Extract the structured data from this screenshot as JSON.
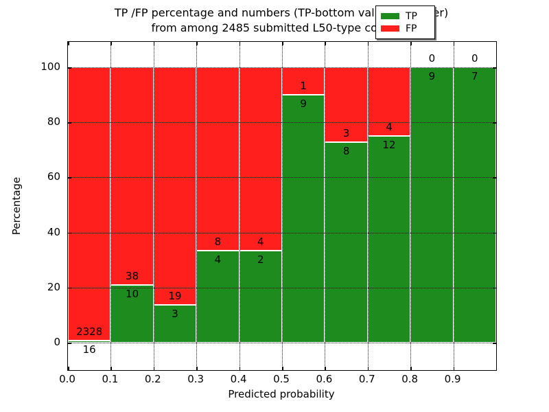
{
  "title": {
    "line1": "TP /FP percentage and numbers (TP-bottom value, FP-upper)",
    "line2": "from among 2485 submitted L50-type contacts"
  },
  "axes": {
    "xlabel": "Predicted probability",
    "ylabel": "Percentage",
    "xticks": [
      "0.0",
      "0.1",
      "0.2",
      "0.3",
      "0.4",
      "0.5",
      "0.6",
      "0.7",
      "0.8",
      "0.9"
    ],
    "yticks": [
      "0",
      "20",
      "40",
      "60",
      "80",
      "100"
    ]
  },
  "legend": {
    "items": [
      {
        "label": "TP",
        "color": "#1e8b1e"
      },
      {
        "label": "FP",
        "color": "#ff1f1c"
      }
    ]
  },
  "colors": {
    "tp": "#1e8b1e",
    "fp": "#ff1f1c",
    "grid": "#1a1a1a"
  },
  "chart_data": {
    "type": "bar",
    "stacked": true,
    "normalized_to_percent": true,
    "title": "TP /FP percentage and numbers (TP-bottom value, FP-upper) from among 2485 submitted L50-type contacts",
    "xlabel": "Predicted probability",
    "ylabel": "Percentage",
    "bins": [
      "0.0-0.1",
      "0.1-0.2",
      "0.2-0.3",
      "0.3-0.4",
      "0.4-0.5",
      "0.5-0.6",
      "0.6-0.7",
      "0.7-0.8",
      "0.8-0.9",
      "0.9-1.0"
    ],
    "bin_edges": [
      0.0,
      0.1,
      0.2,
      0.3,
      0.4,
      0.5,
      0.6,
      0.7,
      0.8,
      0.9,
      1.0
    ],
    "series": [
      {
        "name": "TP",
        "color": "#1e8b1e",
        "counts": [
          16,
          10,
          3,
          4,
          2,
          9,
          8,
          12,
          9,
          7
        ]
      },
      {
        "name": "FP",
        "color": "#ff1f1c",
        "counts": [
          2328,
          38,
          19,
          8,
          4,
          1,
          3,
          4,
          0,
          0
        ]
      }
    ],
    "tp_percent": [
      0.68,
      20.83,
      13.64,
      33.33,
      33.33,
      90.0,
      72.73,
      75.0,
      100.0,
      100.0
    ],
    "fp_percent": [
      99.32,
      79.17,
      86.36,
      66.67,
      66.67,
      10.0,
      27.27,
      25.0,
      0.0,
      0.0
    ],
    "total_contacts": 2485,
    "xlim": [
      0.0,
      1.0
    ],
    "ylim": [
      0,
      100
    ],
    "grid": "dotted",
    "legend_position": "upper right"
  }
}
